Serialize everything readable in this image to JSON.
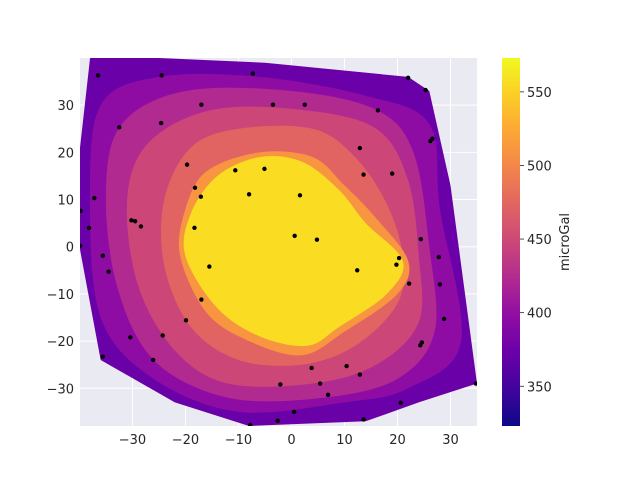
{
  "chart_data": {
    "type": "contourf",
    "xlim": [
      -39.9,
      35
    ],
    "ylim": [
      -38,
      40
    ],
    "xticks": [
      -30,
      -20,
      -10,
      0,
      10,
      20,
      30
    ],
    "yticks": [
      -30,
      -20,
      -10,
      0,
      10,
      20,
      30
    ],
    "xtick_labels": [
      "−30",
      "−20",
      "−10",
      "0",
      "10",
      "20",
      "30"
    ],
    "ytick_labels": [
      "−30",
      "−20",
      "−10",
      "0",
      "10",
      "20",
      "30"
    ],
    "grid": true,
    "colorbar": {
      "label": "microGal",
      "range": [
        323,
        573
      ],
      "ticks": [
        350,
        400,
        450,
        500,
        550
      ],
      "tick_labels": [
        "350",
        "400",
        "450",
        "500",
        "550"
      ],
      "colormap": "plasma"
    },
    "levels": [
      {
        "value": 400,
        "color": "#6a00a8"
      },
      {
        "value": 425,
        "color": "#8e0ca4"
      },
      {
        "value": 450,
        "color": "#b12a90"
      },
      {
        "value": 475,
        "color": "#cc4778"
      },
      {
        "value": 500,
        "color": "#e16462"
      },
      {
        "value": 525,
        "color": "#f89540"
      },
      {
        "value": 560,
        "color": "#fadd22"
      }
    ],
    "data_points": [
      [
        -36.5,
        36.3
      ],
      [
        -24.5,
        36.3
      ],
      [
        -7.3,
        36.7
      ],
      [
        22,
        35.8
      ],
      [
        25.3,
        33.2
      ],
      [
        -17,
        30.1
      ],
      [
        -3.5,
        30.1
      ],
      [
        2.5,
        30.1
      ],
      [
        16.3,
        28.9
      ],
      [
        -32.5,
        25.3
      ],
      [
        -24.6,
        26.2
      ],
      [
        26.2,
        22.4
      ],
      [
        26.6,
        22.9
      ],
      [
        12.9,
        20.9
      ],
      [
        -19.7,
        17.4
      ],
      [
        -10.6,
        16.2
      ],
      [
        -5.1,
        16.5
      ],
      [
        13.6,
        15.3
      ],
      [
        19,
        15.5
      ],
      [
        -18.2,
        12.5
      ],
      [
        -17.1,
        10.6
      ],
      [
        -8,
        11.1
      ],
      [
        1.6,
        10.9
      ],
      [
        -37.2,
        10.3
      ],
      [
        -39.8,
        7.6
      ],
      [
        -30.2,
        5.6
      ],
      [
        -29.5,
        5.4
      ],
      [
        -28.4,
        4.3
      ],
      [
        -18.3,
        4
      ],
      [
        -38.2,
        4
      ],
      [
        0.6,
        2.3
      ],
      [
        4.8,
        1.5
      ],
      [
        24.4,
        1.6
      ],
      [
        -39.9,
        0.2
      ],
      [
        -35.6,
        -1.9
      ],
      [
        20.3,
        -2.4
      ],
      [
        19.8,
        -3.8
      ],
      [
        27.8,
        -2.2
      ],
      [
        -15.5,
        -4.2
      ],
      [
        12.4,
        -5
      ],
      [
        -34.5,
        -5.3
      ],
      [
        22.2,
        -7.8
      ],
      [
        28,
        -8
      ],
      [
        -17,
        -11.2
      ],
      [
        28.8,
        -15.3
      ],
      [
        -19.9,
        -15.6
      ],
      [
        -24.3,
        -18.8
      ],
      [
        -30.4,
        -19.2
      ],
      [
        24.6,
        -20.3
      ],
      [
        24.3,
        -20.9
      ],
      [
        -35.6,
        -23.3
      ],
      [
        -26.1,
        -24
      ],
      [
        10.4,
        -25.3
      ],
      [
        3.8,
        -25.7
      ],
      [
        12.9,
        -27.1
      ],
      [
        5.4,
        -29
      ],
      [
        -2.1,
        -29.2
      ],
      [
        34.8,
        -29
      ],
      [
        6.9,
        -31.4
      ],
      [
        20.6,
        -33.1
      ],
      [
        0.5,
        -35
      ],
      [
        -2.6,
        -36.9
      ],
      [
        13.6,
        -36.6
      ],
      [
        -7.8,
        -37.8
      ]
    ]
  }
}
